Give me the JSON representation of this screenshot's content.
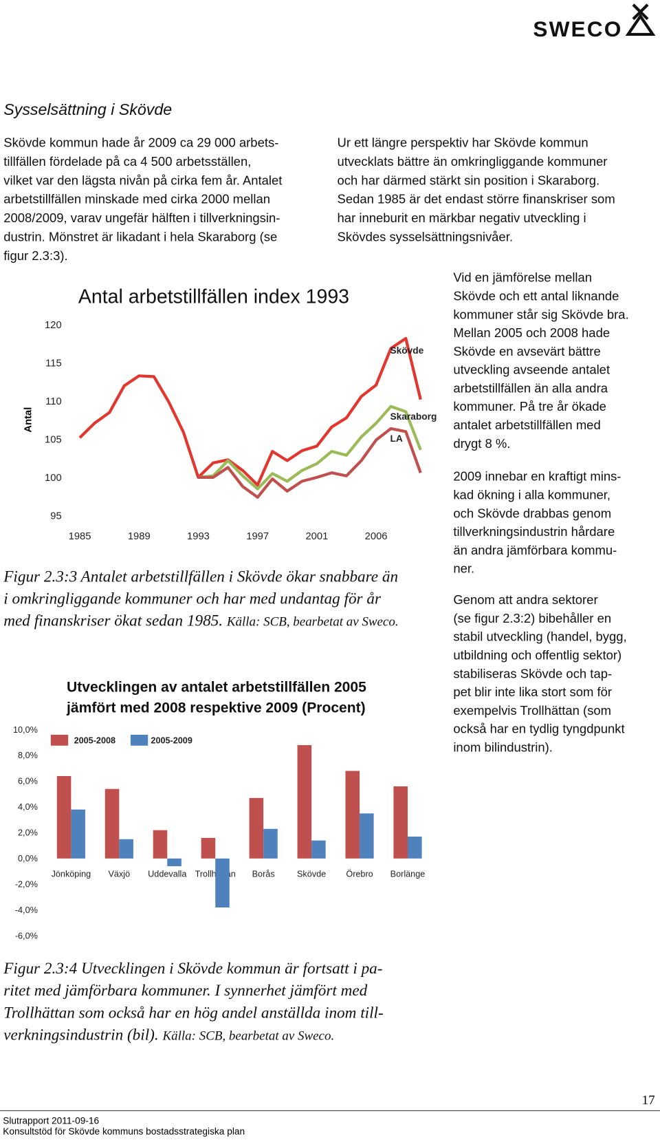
{
  "header": {
    "logo": "SWECO"
  },
  "title": "Sysselsättning i Skövde",
  "left_paragraph": [
    "Skövde kommun hade år 2009 ca 29 000 arbets-",
    "tillfällen fördelade på ca 4 500 arbetsställen,",
    "vilket var den lägsta nivån på cirka fem år. Antalet",
    "arbetstillfällen minskade med cirka 2000 mellan",
    "2008/2009, varav ungefär hälften i tillverkningsin-",
    "dustrin. Mönstret är likadant i hela Skaraborg (se",
    "figur 2.3:3)."
  ],
  "right_paragraph": [
    "Ur ett längre perspektiv har Skövde kommun",
    "utvecklats bättre än omkringliggande kommuner",
    "och har därmed stärkt sin position i Skaraborg.",
    "Sedan 1985 är det endast större finanskriser som",
    "har inneburit en märkbar negativ utveckling i",
    "Skövdes sysselsättningsnivåer."
  ],
  "side_paragraphs": [
    [
      "Vid en jämförelse mellan",
      "Skövde och ett antal liknande",
      "kommuner står sig Skövde bra.",
      "Mellan 2005 och 2008 hade",
      "Skövde en avsevärt bättre",
      "utveckling avseende antalet",
      "arbetstillfällen än alla andra",
      "kommuner. På tre år ökade",
      "antalet arbetstillfällen med",
      "drygt 8 %."
    ],
    [
      "2009 innebar en kraftigt mins-",
      "kad ökning i alla kommuner,",
      "och Skövde drabbas genom",
      "tillverkningsindustrin hårdare",
      "än andra jämförbara kommu-",
      "ner."
    ],
    [
      "Genom att andra sektorer",
      "(se figur 2.3:2) bibehåller en",
      "stabil utveckling (handel, bygg,",
      "utbildning och offentlig sektor)",
      "stabiliseras Skövde och tap-",
      "pet blir inte lika stort som för",
      "exempelvis Trollhättan (som",
      "också har en tydlig tyngdpunkt",
      "inom bilindustrin)."
    ]
  ],
  "chart_data": [
    {
      "type": "line",
      "title": "Antal arbetstillfällen index 1993",
      "y_label": "Antal",
      "categories": [
        "1985",
        null,
        null,
        null,
        "1989",
        null,
        null,
        null,
        "1993",
        null,
        null,
        null,
        "1997",
        null,
        null,
        null,
        "2001",
        null,
        null,
        null,
        "2006",
        null,
        null,
        null
      ],
      "ylim": [
        95,
        120
      ],
      "yticks": [
        95,
        100,
        105,
        110,
        115,
        120
      ],
      "grid": false,
      "series": [
        {
          "name": "Skövde",
          "color": "#e2372e",
          "values": [
            105.2,
            107.1,
            108.5,
            112.0,
            113.3,
            113.2,
            109.9,
            105.9,
            100,
            101.9,
            102.3,
            100.9,
            99.0,
            103.4,
            102.2,
            103.5,
            104.1,
            106.6,
            107.8,
            110.6,
            112.1,
            116.9,
            118.2,
            110.2
          ]
        },
        {
          "name": "Skaraborg",
          "color": "#9bbb59",
          "values": [
            null,
            null,
            null,
            null,
            null,
            null,
            null,
            null,
            100,
            100.2,
            102.2,
            100.2,
            98.5,
            100.5,
            99.5,
            100.9,
            101.8,
            103.4,
            102.9,
            105.3,
            107.1,
            109.3,
            108.6,
            103.6
          ]
        },
        {
          "name": "LA",
          "color": "#c0504d",
          "values": [
            null,
            null,
            null,
            null,
            null,
            null,
            null,
            null,
            100,
            100,
            101.3,
            98.8,
            97.4,
            99.8,
            98.2,
            99.5,
            100,
            100.6,
            100.2,
            102.2,
            104.9,
            106.4,
            106.0,
            100.6
          ]
        }
      ]
    },
    {
      "type": "bar",
      "title": [
        "Utvecklingen av antalet arbetstillfällen 2005",
        "jämfört med 2008 respektive 2009 (Procent)"
      ],
      "categories": [
        "Jönköping",
        "Växjö",
        "Uddevalla",
        "Trollhättan",
        "Borås",
        "Skövde",
        "Örebro",
        "Borlänge"
      ],
      "ylim": [
        -6,
        10
      ],
      "yticks": [
        {
          "value": -6,
          "label": "-6,0%"
        },
        {
          "value": -4,
          "label": "-4,0%"
        },
        {
          "value": -2,
          "label": "-2,0%"
        },
        {
          "value": 0,
          "label": "0,0%"
        },
        {
          "value": 2,
          "label": "2,0%"
        },
        {
          "value": 4,
          "label": "4,0%"
        },
        {
          "value": 6,
          "label": "6,0%"
        },
        {
          "value": 8,
          "label": "8,0%"
        },
        {
          "value": 10,
          "label": "10,0%"
        }
      ],
      "grid": false,
      "series": [
        {
          "name": "2005-2008",
          "color": "#c0504d",
          "values": [
            6.4,
            5.4,
            2.2,
            1.6,
            4.7,
            8.8,
            6.8,
            5.6
          ]
        },
        {
          "name": "2005-2009",
          "color": "#4f81bd",
          "values": [
            3.8,
            1.5,
            -0.6,
            -3.8,
            2.3,
            1.4,
            3.5,
            1.7
          ]
        }
      ]
    }
  ],
  "captions": [
    {
      "lines": [
        "Figur 2.3:3 Antalet arbetstillfällen i Skövde ökar snabbare än",
        "i omkringliggande kommuner och har med undantag för år",
        "med finanskriser ökat sedan 1985. "
      ],
      "source": "Källa: SCB, bearbetat av Sweco."
    },
    {
      "lines": [
        "Figur 2.3:4 Utvecklingen i Skövde kommun är fortsatt i pa-",
        "ritet med jämförbara kommuner. I synnerhet jämfört med",
        "Trollhättan som också har en hög andel anställda inom till-",
        "verkningsindustrin (bil). "
      ],
      "source": "Källa: SCB, bearbetat av Sweco."
    }
  ],
  "footer": {
    "page": "17",
    "lines": [
      "Slutrapport 2011-09-16",
      "Konsultstöd för Skövde kommuns bostadsstrategiska plan"
    ]
  }
}
